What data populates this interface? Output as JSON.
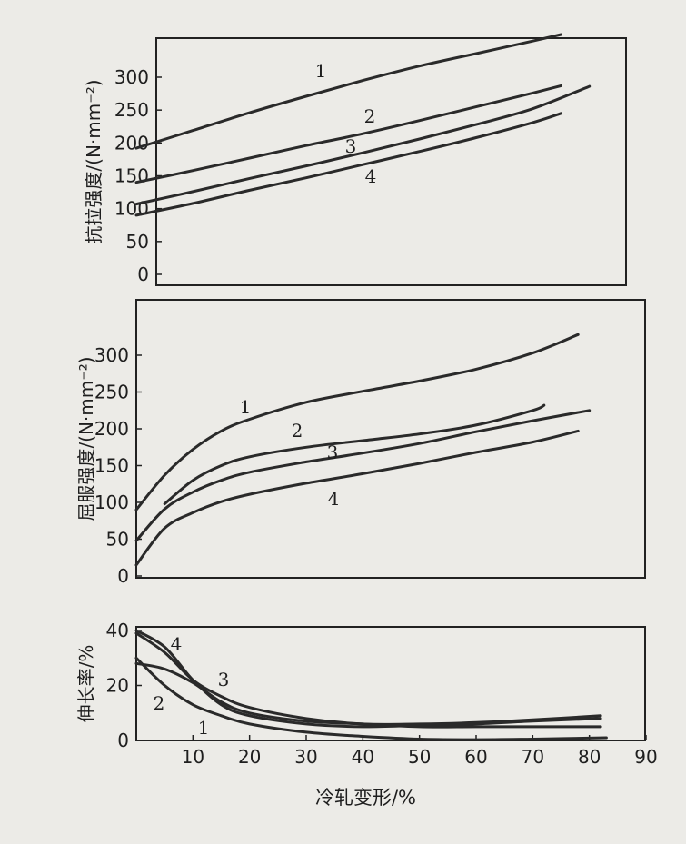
{
  "chart_data": [
    {
      "type": "line",
      "ylabel": "抗拉强度/(N·mm⁻²)",
      "ylim": [
        0,
        330
      ],
      "xlim": [
        0,
        90
      ],
      "yticks": [
        "0",
        "50",
        "100",
        "150",
        "200",
        "250",
        "300"
      ],
      "series": [
        {
          "name": "1",
          "x": [
            0,
            10,
            20,
            30,
            40,
            50,
            60,
            70,
            75
          ],
          "y": [
            192,
            219,
            246,
            271,
            295,
            317,
            336,
            355,
            365
          ]
        },
        {
          "name": "2",
          "x": [
            0,
            10,
            20,
            30,
            40,
            50,
            60,
            70,
            75
          ],
          "y": [
            140,
            158,
            177,
            196,
            214,
            234,
            255,
            276,
            287
          ]
        },
        {
          "name": "3",
          "x": [
            0,
            10,
            20,
            30,
            40,
            50,
            60,
            70,
            80
          ],
          "y": [
            107,
            126,
            146,
            165,
            185,
            206,
            228,
            252,
            286
          ]
        },
        {
          "name": "4",
          "x": [
            0,
            10,
            20,
            30,
            40,
            50,
            60,
            70,
            75
          ],
          "y": [
            90,
            108,
            128,
            147,
            167,
            187,
            208,
            231,
            245
          ]
        }
      ]
    },
    {
      "type": "line",
      "ylabel": "屈服强度/(N·mm⁻²)",
      "ylim": [
        0,
        330
      ],
      "xlim": [
        0,
        90
      ],
      "yticks": [
        "0",
        "50",
        "100",
        "150",
        "200",
        "250",
        "300"
      ],
      "series": [
        {
          "name": "1",
          "x": [
            0,
            5,
            10,
            15,
            20,
            30,
            40,
            50,
            60,
            70,
            78
          ],
          "y": [
            90,
            137,
            172,
            197,
            213,
            236,
            251,
            265,
            281,
            303,
            328
          ]
        },
        {
          "name": "2",
          "x": [
            5,
            10,
            15,
            20,
            30,
            40,
            50,
            60,
            70,
            72
          ],
          "y": [
            98,
            130,
            150,
            162,
            175,
            184,
            193,
            205,
            225,
            232
          ]
        },
        {
          "name": "3",
          "x": [
            0,
            5,
            10,
            15,
            20,
            30,
            40,
            50,
            60,
            70,
            80
          ],
          "y": [
            48,
            91,
            114,
            130,
            141,
            155,
            167,
            180,
            196,
            211,
            225
          ]
        },
        {
          "name": "4",
          "x": [
            0,
            5,
            10,
            15,
            20,
            30,
            40,
            50,
            60,
            70,
            78
          ],
          "y": [
            15,
            65,
            86,
            101,
            111,
            126,
            139,
            153,
            168,
            182,
            197
          ]
        }
      ]
    },
    {
      "type": "line",
      "ylabel": "伸长率/%",
      "xlabel": "冷轧变形/%",
      "ylim": [
        0,
        40
      ],
      "xlim": [
        0,
        90
      ],
      "yticks": [
        "0",
        "20",
        "40"
      ],
      "xticks": [
        "10",
        "20",
        "30",
        "40",
        "50",
        "60",
        "70",
        "80",
        "90"
      ],
      "series": [
        {
          "name": "1",
          "x": [
            0,
            5,
            10,
            15,
            20,
            30,
            40,
            50,
            60,
            70,
            83
          ],
          "y": [
            30,
            20,
            13,
            9,
            6,
            3,
            1.5,
            0.5,
            0.3,
            0.5,
            1
          ]
        },
        {
          "name": "2",
          "x": [
            0,
            5,
            10,
            15,
            20,
            30,
            40,
            50,
            60,
            70,
            82
          ],
          "y": [
            28,
            26,
            21,
            14,
            10,
            7,
            6,
            5,
            5,
            5,
            5
          ]
        },
        {
          "name": "3",
          "x": [
            0,
            5,
            10,
            15,
            20,
            30,
            40,
            50,
            60,
            70,
            82
          ],
          "y": [
            39,
            32,
            22,
            16,
            12,
            8,
            6,
            6,
            6.5,
            7.5,
            9
          ]
        },
        {
          "name": "4",
          "x": [
            0,
            5,
            10,
            15,
            20,
            30,
            40,
            50,
            60,
            70,
            82
          ],
          "y": [
            40,
            34,
            22,
            13,
            9,
            6,
            5,
            5.5,
            6,
            7,
            8
          ]
        }
      ]
    }
  ]
}
